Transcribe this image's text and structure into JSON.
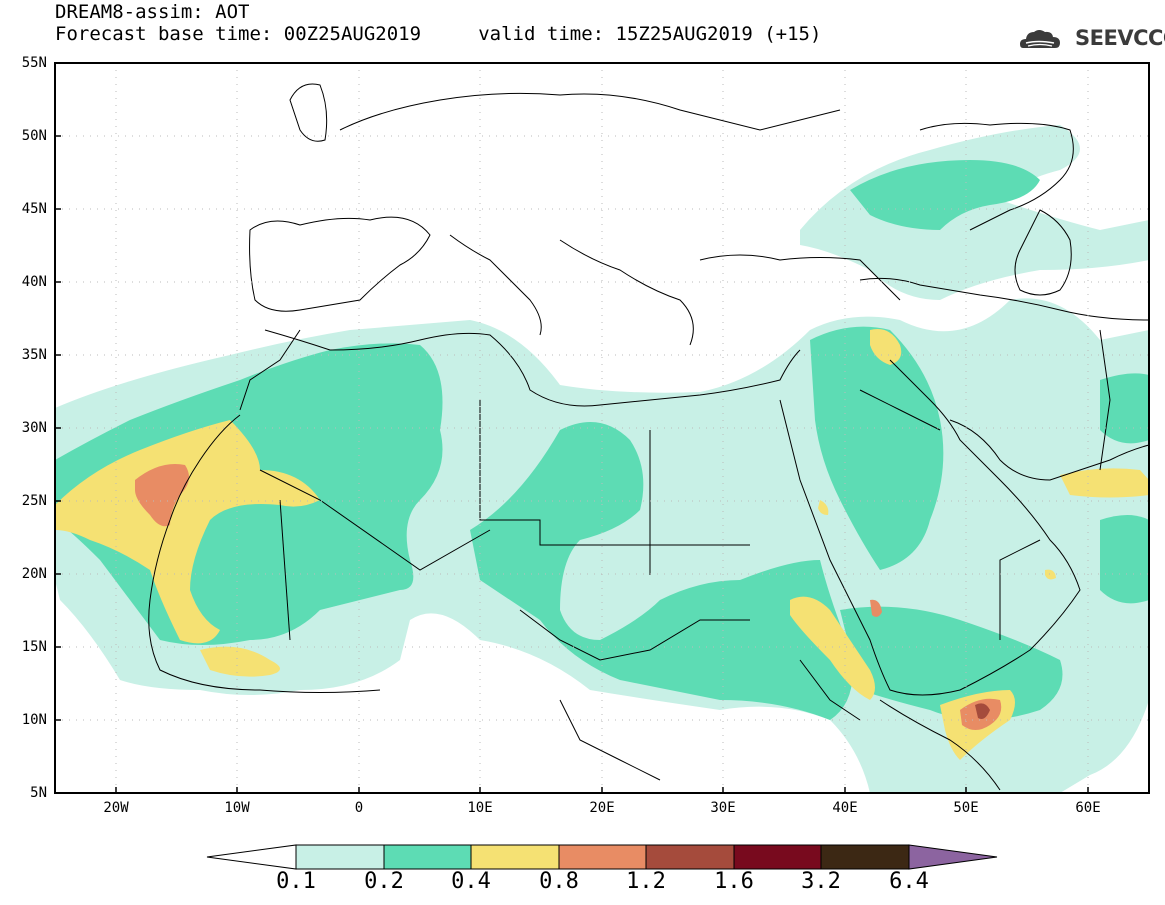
{
  "title": {
    "line1": "DREAM8-assim: AOT",
    "line2": "Forecast base time: 00Z25AUG2019     valid time: 15Z25AUG2019 (+15)"
  },
  "logo": {
    "text": "SEEVCCC"
  },
  "map": {
    "lat_labels": [
      "55N",
      "50N",
      "45N",
      "40N",
      "35N",
      "30N",
      "25N",
      "20N",
      "15N",
      "10N",
      "5N"
    ],
    "lon_labels": [
      "20W",
      "10W",
      "0",
      "10E",
      "20E",
      "30E",
      "40E",
      "50E",
      "60E"
    ],
    "extent": {
      "lon_min": -25,
      "lon_max": 65,
      "lat_min": 5,
      "lat_max": 55
    }
  },
  "colorbar": {
    "labels": [
      "0.1",
      "0.2",
      "0.4",
      "0.8",
      "1.2",
      "1.6",
      "3.2",
      "6.4"
    ],
    "colors": [
      "#ffffff",
      "#c8f0e6",
      "#5ddcb4",
      "#f5e173",
      "#e88c64",
      "#a54b3c",
      "#780a1e",
      "#3c2814",
      "#8c64a0"
    ],
    "levels": [
      0.1,
      0.2,
      0.4,
      0.8,
      1.2,
      1.6,
      3.2,
      6.4
    ]
  }
}
